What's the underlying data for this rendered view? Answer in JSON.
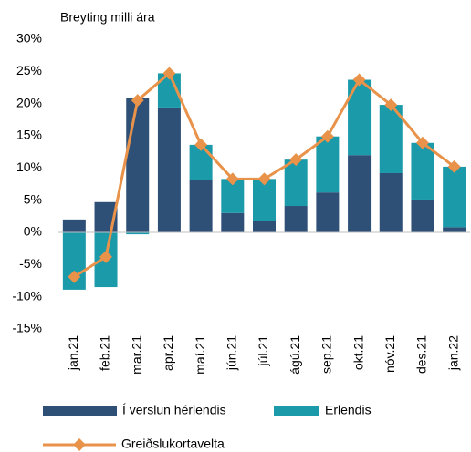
{
  "chart_data": {
    "type": "bar",
    "ylabel": "Breyting milli ára",
    "categories": [
      "jan.21",
      "feb.21",
      "mar.21",
      "apr.21",
      "maí.21",
      "jún.21",
      "júl.21",
      "ágú.21",
      "sep.21",
      "okt.21",
      "nóv.21",
      "des.21",
      "jan.22"
    ],
    "stacked": true,
    "series": [
      {
        "name": "Í verslun hérlendis",
        "color": "#2e5077",
        "values": [
          2.0,
          4.7,
          20.8,
          19.4,
          8.2,
          3.0,
          1.7,
          4.1,
          6.2,
          12.0,
          9.2,
          5.1,
          0.8
        ]
      },
      {
        "name": "Erlendis",
        "color": "#1b9aaa",
        "values": [
          -8.9,
          -8.5,
          -0.3,
          5.3,
          5.4,
          5.3,
          6.6,
          7.2,
          8.7,
          11.7,
          10.6,
          8.8,
          9.4
        ]
      },
      {
        "name": "Greiðslukortavelta",
        "type": "line",
        "color": "#e8924a",
        "values": [
          -6.9,
          -3.8,
          20.5,
          24.7,
          13.6,
          8.3,
          8.3,
          11.3,
          14.9,
          23.7,
          19.8,
          13.9,
          10.2
        ]
      }
    ],
    "ylim": [
      -15,
      30
    ],
    "yticks": [
      {
        "value": -15,
        "label": "-15%"
      },
      {
        "value": -10,
        "label": "-10%"
      },
      {
        "value": -5,
        "label": "-5%"
      },
      {
        "value": 0,
        "label": "0%"
      },
      {
        "value": 5,
        "label": "5%"
      },
      {
        "value": 10,
        "label": "10%"
      },
      {
        "value": 15,
        "label": "15%"
      },
      {
        "value": 20,
        "label": "20%"
      },
      {
        "value": 25,
        "label": "25%"
      },
      {
        "value": 30,
        "label": "30%"
      }
    ],
    "grid": false
  }
}
